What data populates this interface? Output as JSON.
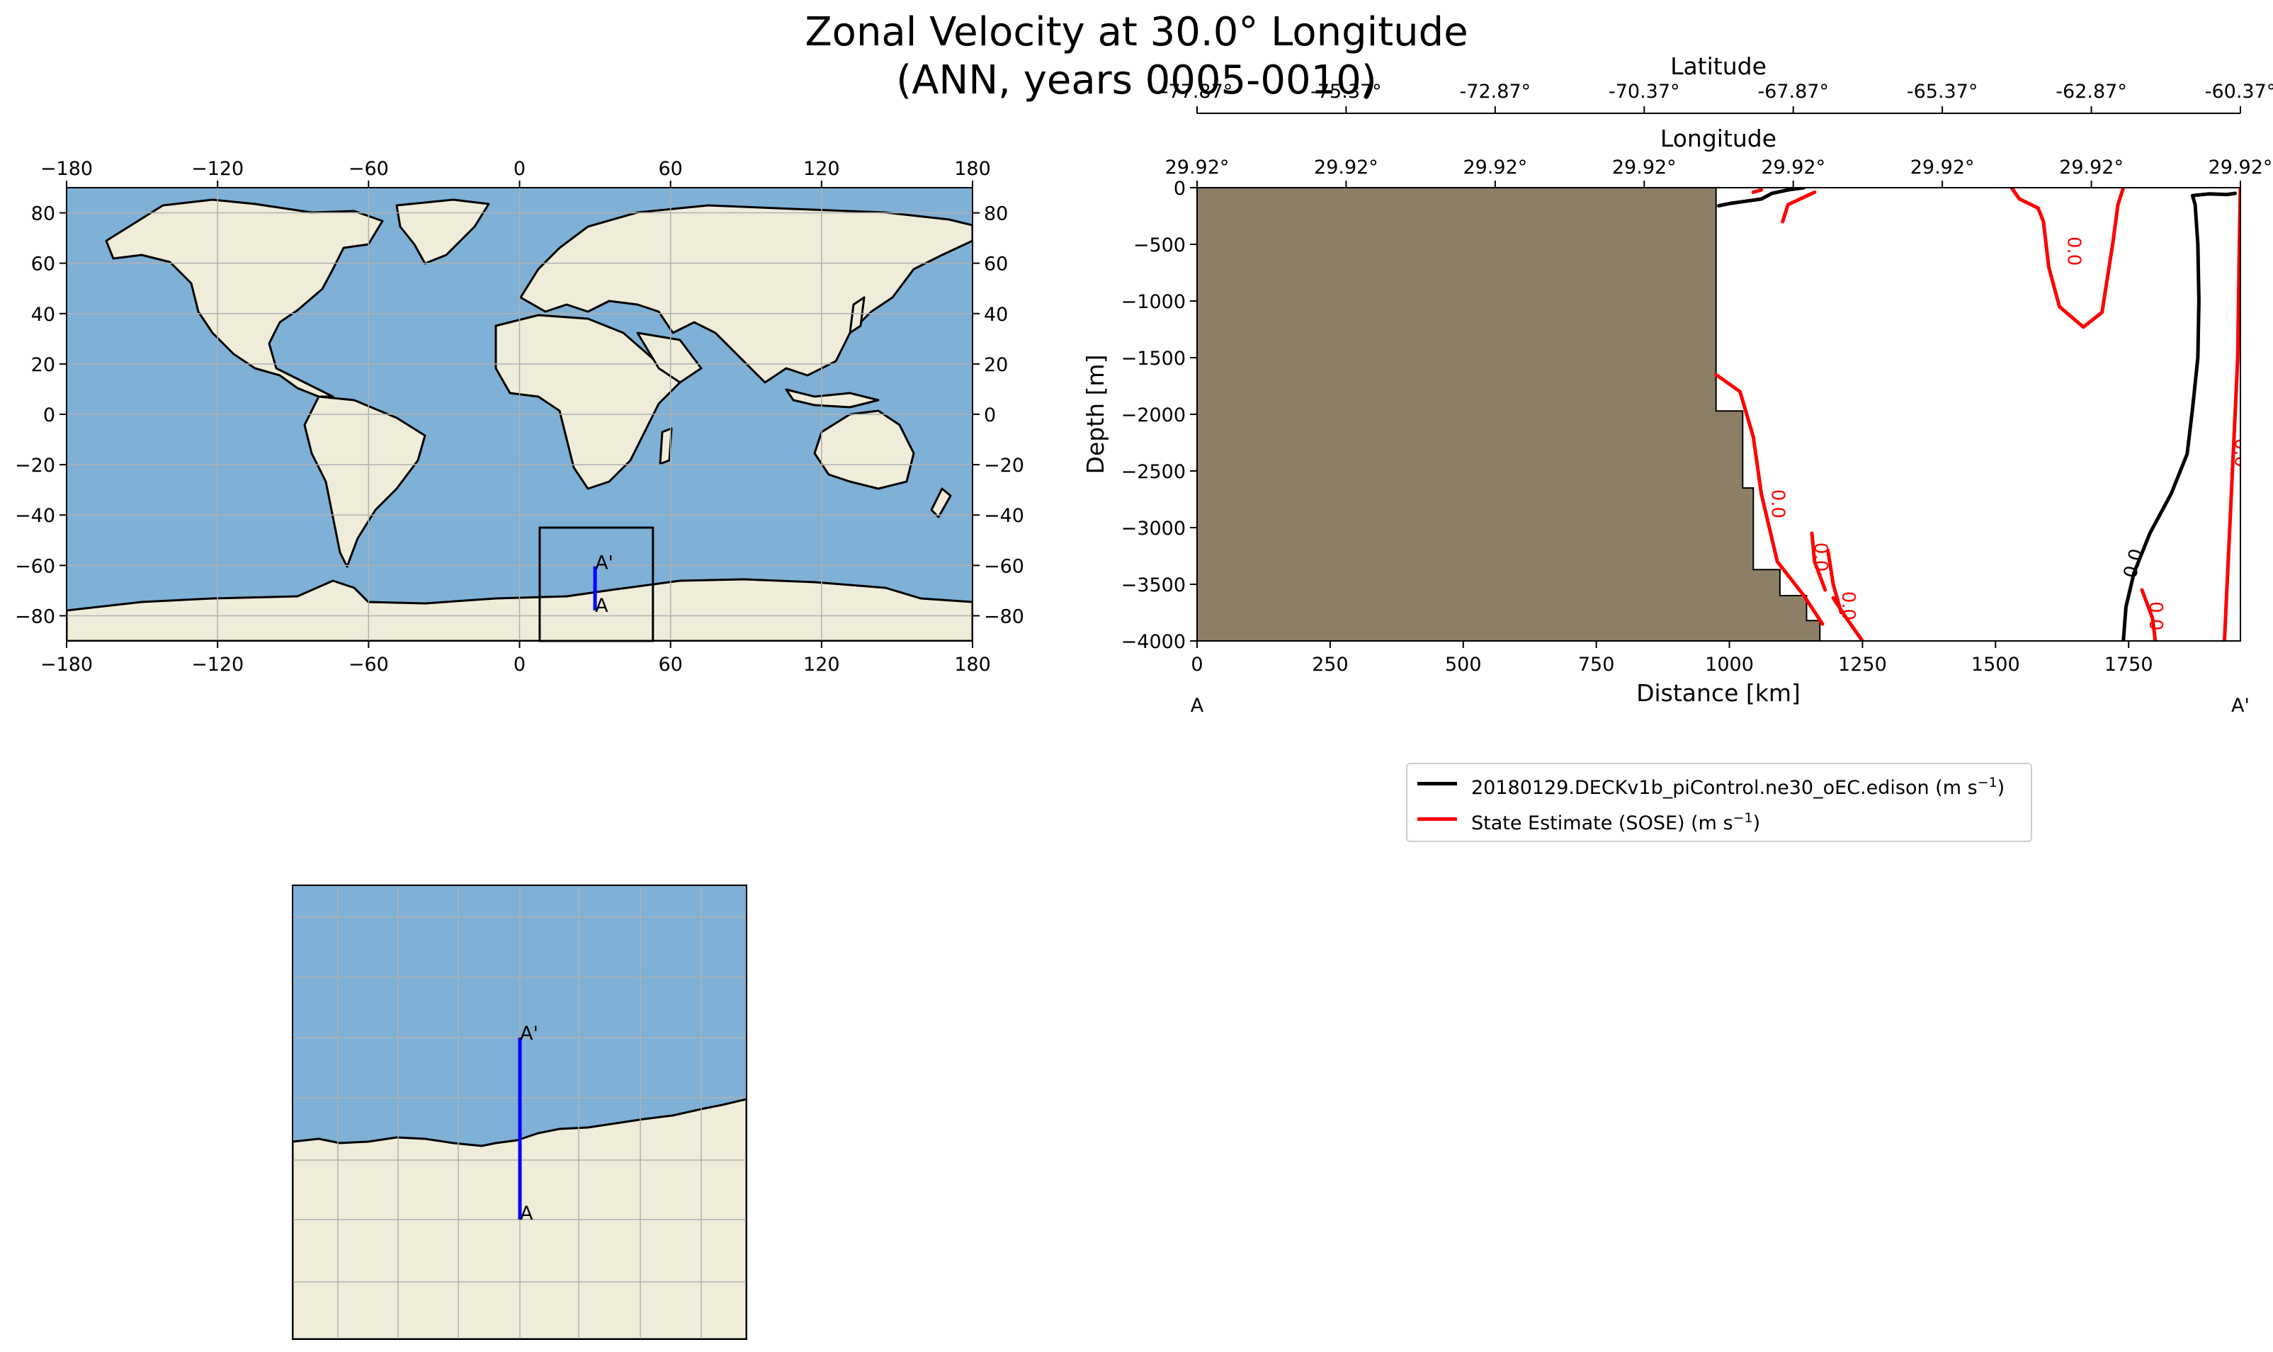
{
  "figure": {
    "title_line1": "Zonal Velocity at 30.0° Longitude",
    "title_line2": "(ANN, years 0005-0010)"
  },
  "colors": {
    "ocean": "#7fb0d6",
    "land": "#efedda",
    "bathymetry_land": "#8d7f65",
    "section_line": "#0000ff",
    "model_contour": "#000000",
    "obs_contour": "#ff0000",
    "grid": "#b0b0b0"
  },
  "global_map": {
    "lon_ticks": [
      "−180",
      "−120",
      "−60",
      "0",
      "60",
      "120",
      "180"
    ],
    "lat_ticks": [
      "80",
      "60",
      "40",
      "20",
      "0",
      "−20",
      "−40",
      "−60",
      "−80"
    ],
    "inset_box_lon": [
      8,
      53
    ],
    "inset_box_lat": [
      -90,
      -45
    ],
    "section_lon": 30,
    "section_lat_start": -77.87,
    "section_lat_end": -60.37,
    "start_label": "A",
    "end_label": "A'"
  },
  "inset_map": {
    "start_label": "A",
    "end_label": "A'"
  },
  "chart_data": {
    "type": "contour",
    "title": "Zonal Velocity at 30.0° Longitude (ANN, years 0005-0010)",
    "xlabel": "Distance [km]",
    "ylabel": "Depth [m]",
    "top_xlabel_1": "Latitude",
    "top_xlabel_2": "Longitude",
    "xlim": [
      0,
      1960
    ],
    "ylim": [
      -4000,
      0
    ],
    "x_ticks": [
      "0",
      "250",
      "500",
      "750",
      "1000",
      "1250",
      "1500",
      "1750"
    ],
    "y_ticks": [
      "0",
      "−500",
      "−1000",
      "−1500",
      "−2000",
      "−2500",
      "−3000",
      "−3500",
      "−4000"
    ],
    "lat_ticks": [
      "-77.87°",
      "-75.37°",
      "-72.87°",
      "-70.37°",
      "-67.87°",
      "-65.37°",
      "-62.87°",
      "-60.37°"
    ],
    "lon_ticks": [
      "29.92°",
      "29.92°",
      "29.92°",
      "29.92°",
      "29.92°",
      "29.92°",
      "29.92°",
      "29.92°"
    ],
    "start_label": "A",
    "end_label": "A'",
    "bathymetry": [
      {
        "x": 0,
        "depth": 0
      },
      {
        "x": 975,
        "depth": 0
      },
      {
        "x": 975,
        "depth": -1970
      },
      {
        "x": 1025,
        "depth": -1970
      },
      {
        "x": 1025,
        "depth": -2650
      },
      {
        "x": 1045,
        "depth": -2650
      },
      {
        "x": 1045,
        "depth": -3370
      },
      {
        "x": 1095,
        "depth": -3370
      },
      {
        "x": 1095,
        "depth": -3600
      },
      {
        "x": 1145,
        "depth": -3600
      },
      {
        "x": 1145,
        "depth": -3820
      },
      {
        "x": 1170,
        "depth": -3820
      },
      {
        "x": 1170,
        "depth": -4000
      },
      {
        "x": 0,
        "depth": -4000
      }
    ],
    "contour_level": "0.0",
    "series": [
      {
        "name": "20180129.DECKv1b_piControl.ne30_oEC.edison (m s",
        "unit_exp": "−1",
        "color": "#000000",
        "contours": [
          [
            [
              1060,
              -100
            ],
            [
              1030,
              -120
            ],
            [
              1000,
              -140
            ],
            [
              980,
              -160
            ]
          ],
          [
            [
              1140,
              0
            ],
            [
              1110,
              -20
            ],
            [
              1080,
              -50
            ],
            [
              1060,
              -100
            ]
          ],
          [
            [
              1740,
              -4000
            ],
            [
              1745,
              -3700
            ],
            [
              1760,
              -3400
            ],
            [
              1790,
              -3050
            ],
            [
              1830,
              -2700
            ],
            [
              1860,
              -2350
            ],
            [
              1870,
              -1950
            ],
            [
              1880,
              -1500
            ],
            [
              1882,
              -1000
            ],
            [
              1880,
              -500
            ],
            [
              1875,
              -150
            ],
            [
              1870,
              -70
            ],
            [
              1900,
              -55
            ],
            [
              1935,
              -60
            ],
            [
              1950,
              -50
            ]
          ]
        ]
      },
      {
        "name": "State Estimate (SOSE) (m s",
        "unit_exp": "−1",
        "color": "#ff0000",
        "contours": [
          [
            [
              1045,
              -40
            ],
            [
              1060,
              -20
            ]
          ],
          [
            [
              1160,
              -40
            ],
            [
              1110,
              -150
            ],
            [
              1100,
              -300
            ]
          ],
          [
            [
              1530,
              0
            ],
            [
              1545,
              -100
            ],
            [
              1580,
              -180
            ],
            [
              1590,
              -300
            ],
            [
              1600,
              -700
            ],
            [
              1620,
              -1050
            ],
            [
              1665,
              -1230
            ],
            [
              1700,
              -1100
            ],
            [
              1710,
              -800
            ],
            [
              1720,
              -500
            ],
            [
              1730,
              -150
            ],
            [
              1740,
              0
            ]
          ],
          [
            [
              975,
              -1650
            ],
            [
              1020,
              -1800
            ],
            [
              1045,
              -2200
            ],
            [
              1060,
              -2700
            ],
            [
              1090,
              -3300
            ],
            [
              1140,
              -3600
            ],
            [
              1175,
              -3850
            ]
          ],
          [
            [
              1155,
              -3050
            ],
            [
              1160,
              -3300
            ],
            [
              1180,
              -3550
            ]
          ],
          [
            [
              1185,
              -3200
            ],
            [
              1195,
              -3500
            ],
            [
              1210,
              -3750
            ]
          ],
          [
            [
              1195,
              -3620
            ],
            [
              1220,
              -3800
            ],
            [
              1250,
              -4000
            ]
          ],
          [
            [
              1775,
              -3550
            ],
            [
              1795,
              -3800
            ],
            [
              1800,
              -4000
            ]
          ],
          [
            [
              1930,
              -4000
            ],
            [
              1935,
              -3500
            ],
            [
              1940,
              -3000
            ],
            [
              1945,
              -2500
            ],
            [
              1950,
              -2000
            ],
            [
              1955,
              -1500
            ],
            [
              1958,
              -500
            ],
            [
              1960,
              0
            ]
          ]
        ],
        "labels": [
          {
            "x": 1636,
            "depth": -560,
            "text": "0.0"
          },
          {
            "x": 1080,
            "depth": -2790,
            "text": "0.0"
          },
          {
            "x": 1160,
            "depth": -3260,
            "text": "0.0"
          },
          {
            "x": 1212,
            "depth": -3690,
            "text": "0.0"
          },
          {
            "x": 1790,
            "depth": -3780,
            "text": "0.0"
          },
          {
            "x": 1950,
            "depth": -2340,
            "text": "0.0"
          }
        ]
      }
    ],
    "model_labels": [
      {
        "x": 1770,
        "depth": -3330,
        "text": "0.0"
      }
    ]
  },
  "legend": {
    "position": "below-right",
    "entries": [
      {
        "label": "20180129.DECKv1b_piControl.ne30_oEC.edison (m s",
        "sup": "−1",
        "close": ")",
        "color": "#000000"
      },
      {
        "label": "State Estimate (SOSE) (m s",
        "sup": "−1",
        "close": ")",
        "color": "#ff0000"
      }
    ]
  }
}
